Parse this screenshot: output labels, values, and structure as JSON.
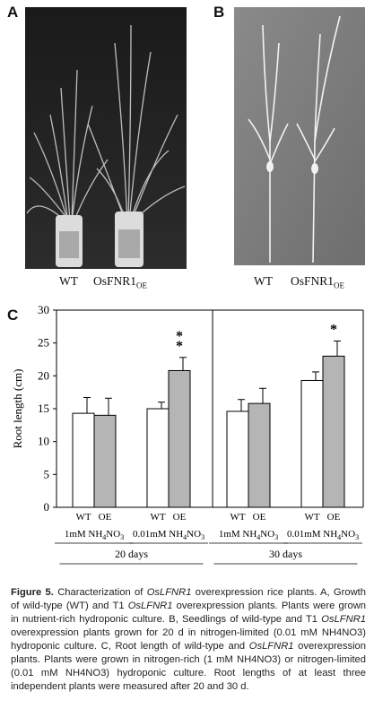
{
  "panels": {
    "a": {
      "label": "A",
      "photo_left": "WT",
      "photo_right_main": "OsFNR1",
      "photo_right_sub": "OE"
    },
    "b": {
      "label": "B",
      "photo_left": "WT",
      "photo_right_main": "OsFNR1",
      "photo_right_sub": "OE"
    },
    "c": {
      "label": "C"
    }
  },
  "chart_data": {
    "type": "bar",
    "ylabel": "Root length (cm)",
    "ylim": [
      0,
      30
    ],
    "yticks": [
      0,
      5,
      10,
      15,
      20,
      25,
      30
    ],
    "series": [
      {
        "name": "WT",
        "color": "#ffffff",
        "values": [
          14.3,
          15.0,
          14.6,
          19.3
        ],
        "errors": [
          2.4,
          1.0,
          1.8,
          1.3
        ]
      },
      {
        "name": "OE",
        "color": "#b5b5b5",
        "values": [
          14.0,
          20.8,
          15.8,
          23.0
        ],
        "errors": [
          2.6,
          2.0,
          2.3,
          2.3
        ]
      }
    ],
    "bar_labels": [
      "WT",
      "OE"
    ],
    "conditions": [
      "1mM NH4NO3",
      "0.01mM NH4NO3",
      "1mM NH4NO3",
      "0.01mM NH4NO3"
    ],
    "groups": [
      "20 days",
      "30 days"
    ],
    "significance": [
      {
        "condition_index": 1,
        "series": "OE",
        "marker": "**"
      },
      {
        "condition_index": 3,
        "series": "OE",
        "marker": "*"
      }
    ]
  },
  "caption": {
    "figure": "Figure 5.",
    "p1": "Characterization of",
    "gene1": "OsLFNR1",
    "p2": "overexpression rice plants. A, Growth of wild-type (WT) and T1",
    "gene2": "OsLFNR1",
    "p3": "overexpression plants. Plants were grown in nutrient-rich hydroponic culture. B, Seedlings of wild-type and T1",
    "gene3": "OsLFNR1",
    "p4": "overexpression plants grown for 20 d in nitrogen-limited (0.01 mM NH4NO3) hydroponic culture. C, Root length of wild-type and",
    "gene4": "OsLFNR1",
    "p5": "overexpression plants. Plants were grown in nitrogen-rich (1 mM NH4NO3) or nitrogen-limited (0.01 mM NH4NO3) hydroponic culture. Root lengths of at least three independent plants were measured after 20 and 30 d."
  }
}
